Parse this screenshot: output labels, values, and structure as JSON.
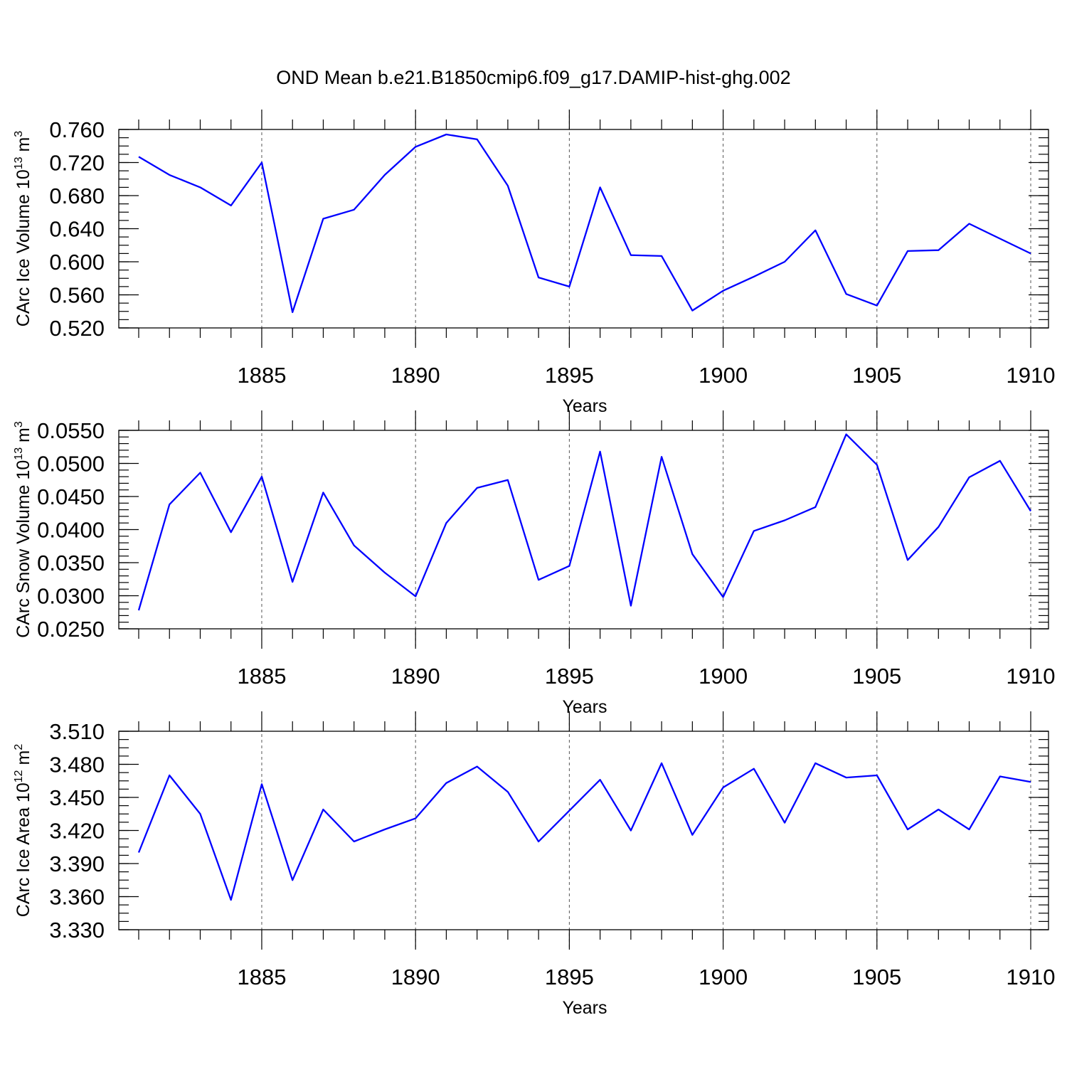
{
  "title": "OND Mean b.e21.B1850cmip6.f09_g17.DAMIP-hist-ghg.002",
  "colors": {
    "line": "#0000ff",
    "frame": "#000000"
  },
  "chart_data": [
    {
      "type": "line",
      "xlabel": "Years",
      "ylabel_text": "CArc Ice Volume 10",
      "ylabel_exp": "13",
      "ylabel_unit": " m",
      "ylabel_unit_exp": "3",
      "xlim": [
        1881,
        1910
      ],
      "ylim": [
        0.52,
        0.76
      ],
      "x_ticks": [
        1885,
        1890,
        1895,
        1900,
        1905,
        1910
      ],
      "x_tick_labels": [
        "1885",
        "1890",
        "1895",
        "1900",
        "1905",
        "1910"
      ],
      "y_ticks": [
        0.52,
        0.56,
        0.6,
        0.64,
        0.68,
        0.72,
        0.76
      ],
      "y_tick_labels": [
        "0.520",
        "0.560",
        "0.600",
        "0.640",
        "0.680",
        "0.720",
        "0.760"
      ],
      "y_minor_step": 0.01,
      "grid": "vertical-dashed",
      "x": [
        1881,
        1882,
        1883,
        1884,
        1885,
        1886,
        1887,
        1888,
        1889,
        1890,
        1891,
        1892,
        1893,
        1894,
        1895,
        1896,
        1897,
        1898,
        1899,
        1900,
        1901,
        1902,
        1903,
        1904,
        1905,
        1906,
        1907,
        1908,
        1909,
        1910
      ],
      "values": [
        0.727,
        0.705,
        0.69,
        0.668,
        0.72,
        0.539,
        0.652,
        0.663,
        0.705,
        0.739,
        0.754,
        0.748,
        0.692,
        0.581,
        0.57,
        0.69,
        0.608,
        0.607,
        0.541,
        0.565,
        0.582,
        0.6,
        0.638,
        0.561,
        0.547,
        0.613,
        0.614,
        0.646,
        0.628,
        0.61
      ]
    },
    {
      "type": "line",
      "xlabel": "Years",
      "ylabel_text": "CArc Snow Volume 10",
      "ylabel_exp": "13",
      "ylabel_unit": " m",
      "ylabel_unit_exp": "3",
      "xlim": [
        1881,
        1910
      ],
      "ylim": [
        0.025,
        0.055
      ],
      "x_ticks": [
        1885,
        1890,
        1895,
        1900,
        1905,
        1910
      ],
      "x_tick_labels": [
        "1885",
        "1890",
        "1895",
        "1900",
        "1905",
        "1910"
      ],
      "y_ticks": [
        0.025,
        0.03,
        0.035,
        0.04,
        0.045,
        0.05,
        0.055
      ],
      "y_tick_labels": [
        "0.0250",
        "0.0300",
        "0.0350",
        "0.0400",
        "0.0450",
        "0.0500",
        "0.0550"
      ],
      "y_minor_step": 0.001,
      "grid": "vertical-dashed",
      "x": [
        1881,
        1882,
        1883,
        1884,
        1885,
        1886,
        1887,
        1888,
        1889,
        1890,
        1891,
        1892,
        1893,
        1894,
        1895,
        1896,
        1897,
        1898,
        1899,
        1900,
        1901,
        1902,
        1903,
        1904,
        1905,
        1906,
        1907,
        1908,
        1909,
        1910
      ],
      "values": [
        0.0278,
        0.0438,
        0.0486,
        0.0396,
        0.048,
        0.0321,
        0.0456,
        0.0376,
        0.0335,
        0.0299,
        0.041,
        0.0463,
        0.0475,
        0.0324,
        0.0345,
        0.0518,
        0.0285,
        0.051,
        0.0363,
        0.0298,
        0.0398,
        0.0414,
        0.0434,
        0.0544,
        0.0498,
        0.0354,
        0.0404,
        0.0479,
        0.0504,
        0.0428
      ]
    },
    {
      "type": "line",
      "xlabel": "Years",
      "ylabel_text": "CArc Ice Area 10",
      "ylabel_exp": "12",
      "ylabel_unit": " m",
      "ylabel_unit_exp": "2",
      "xlim": [
        1881,
        1910
      ],
      "ylim": [
        3.33,
        3.51
      ],
      "x_ticks": [
        1885,
        1890,
        1895,
        1900,
        1905,
        1910
      ],
      "x_tick_labels": [
        "1885",
        "1890",
        "1895",
        "1900",
        "1905",
        "1910"
      ],
      "y_ticks": [
        3.33,
        3.36,
        3.39,
        3.42,
        3.45,
        3.48,
        3.51
      ],
      "y_tick_labels": [
        "3.330",
        "3.360",
        "3.390",
        "3.420",
        "3.450",
        "3.480",
        "3.510"
      ],
      "y_minor_step": 0.0075,
      "grid": "vertical-dashed",
      "x": [
        1881,
        1882,
        1883,
        1884,
        1885,
        1886,
        1887,
        1888,
        1889,
        1890,
        1891,
        1892,
        1893,
        1894,
        1895,
        1896,
        1897,
        1898,
        1899,
        1900,
        1901,
        1902,
        1903,
        1904,
        1905,
        1906,
        1907,
        1908,
        1909,
        1910
      ],
      "values": [
        3.4,
        3.47,
        3.435,
        3.357,
        3.462,
        3.375,
        3.439,
        3.41,
        3.421,
        3.431,
        3.463,
        3.478,
        3.455,
        3.41,
        3.438,
        3.466,
        3.42,
        3.481,
        3.416,
        3.459,
        3.476,
        3.427,
        3.481,
        3.468,
        3.47,
        3.421,
        3.439,
        3.421,
        3.469,
        3.464
      ]
    }
  ]
}
